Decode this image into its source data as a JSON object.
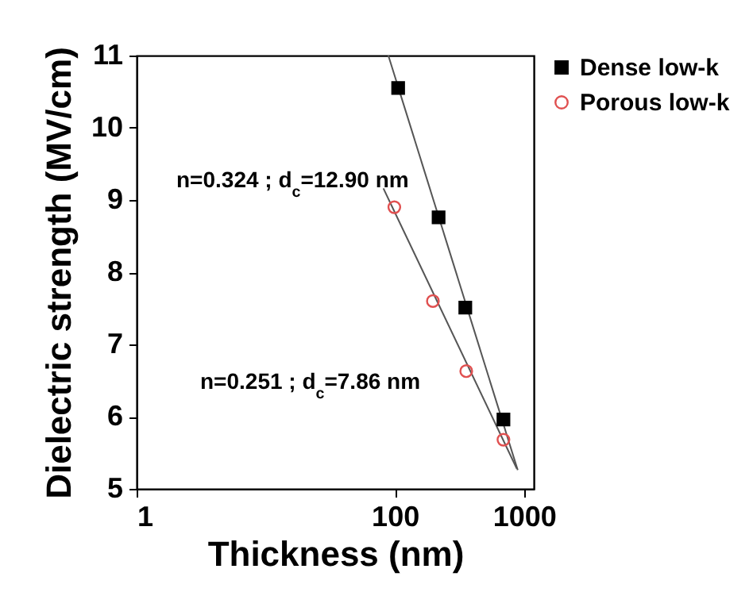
{
  "chart_data": {
    "type": "scatter",
    "xlabel": "Thickness (nm)",
    "ylabel": "Dielectric strength (MV/cm)",
    "xlim": [
      1,
      1190
    ],
    "ylim": [
      5,
      11
    ],
    "xticks": [
      1,
      100,
      1000
    ],
    "yticks": [
      5,
      6,
      7,
      8,
      9,
      10,
      11
    ],
    "log": "x",
    "legend": "top right",
    "series": [
      {
        "name": "Dense low-k",
        "marker": "square",
        "color": "#000000",
        "x": [
          106,
          218,
          351,
          693
        ],
        "values": [
          10.55,
          8.76,
          7.51,
          5.96
        ]
      },
      {
        "name": "Porous low-k",
        "marker": "circle",
        "color": "#e05050",
        "x": [
          99,
          197,
          357,
          693
        ],
        "values": [
          8.9,
          7.6,
          6.63,
          5.68
        ]
      },
      {
        "type": "line",
        "color": "#555555",
        "x": [
          89,
          894
        ],
        "values": [
          11.0,
          5.26
        ]
      },
      {
        "type": "line",
        "color": "#555555",
        "x": [
          81.5,
          879
        ],
        "values": [
          9.16,
          5.28
        ]
      }
    ],
    "annotations": [
      "n=0.324 ; d$_{c}$=12.90 nm",
      "n=0.251 ; d$_{c}$=7.86 nm"
    ]
  }
}
